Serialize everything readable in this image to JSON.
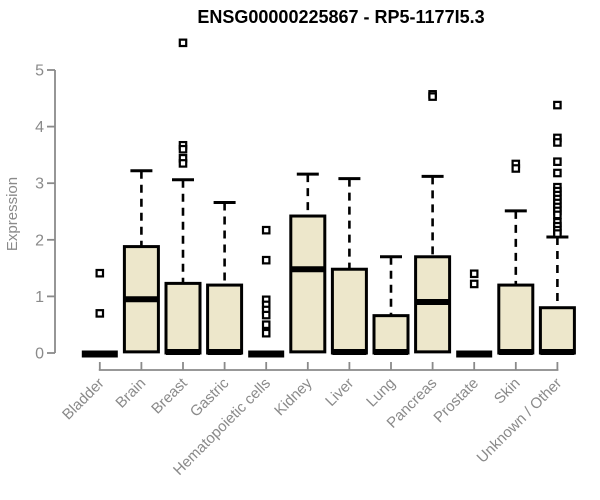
{
  "page": {
    "background": "#ffffff"
  },
  "chart_data": {
    "type": "boxplot",
    "title": "ENSG00000225867 - RP5-1177I5.3",
    "ylabel": "Expression",
    "xlabel": "",
    "ylim": [
      0,
      5
    ],
    "yticks": [
      0,
      1,
      2,
      3,
      4,
      5
    ],
    "grid": false,
    "legend": false,
    "box_fill": "#EDE7CB",
    "box_stroke": "#000000",
    "median_color": "#000000",
    "axis_color": "#8a8a8a",
    "title_color": "#000000",
    "categories": [
      "Bladder",
      "Brain",
      "Breast",
      "Gastric",
      "Hematopoietic cells",
      "Kidney",
      "Liver",
      "Lung",
      "Pancreas",
      "Prostate",
      "Skin",
      "Unknown / Other"
    ],
    "series": [
      {
        "name": "Bladder",
        "q1": 0,
        "median": 0.02,
        "q3": 0.02,
        "whisker_low": 0,
        "whisker_high": 0.02,
        "outliers": [
          1.41,
          0.7
        ]
      },
      {
        "name": "Brain",
        "q1": 0.02,
        "median": 0.95,
        "q3": 1.88,
        "whisker_low": 0,
        "whisker_high": 3.22,
        "outliers": []
      },
      {
        "name": "Breast",
        "q1": 0,
        "median": 0.03,
        "q3": 1.23,
        "whisker_low": 0,
        "whisker_high": 3.06,
        "outliers": [
          5.48,
          3.67,
          3.6,
          3.44,
          3.35
        ]
      },
      {
        "name": "Gastric",
        "q1": 0,
        "median": 0.03,
        "q3": 1.2,
        "whisker_low": 0,
        "whisker_high": 2.66,
        "outliers": []
      },
      {
        "name": "Hematopoietic cells",
        "q1": 0,
        "median": 0.02,
        "q3": 0.02,
        "whisker_low": 0,
        "whisker_high": 0.02,
        "outliers": [
          2.17,
          1.64,
          0.94,
          0.85,
          0.76,
          0.67,
          0.5,
          0.35
        ]
      },
      {
        "name": "Kidney",
        "q1": 0.02,
        "median": 1.48,
        "q3": 2.42,
        "whisker_low": 0,
        "whisker_high": 3.16,
        "outliers": []
      },
      {
        "name": "Liver",
        "q1": 0,
        "median": 0.03,
        "q3": 1.48,
        "whisker_low": 0,
        "whisker_high": 3.08,
        "outliers": []
      },
      {
        "name": "Lung",
        "q1": 0,
        "median": 0.03,
        "q3": 0.66,
        "whisker_low": 0,
        "whisker_high": 1.7,
        "outliers": []
      },
      {
        "name": "Pancreas",
        "q1": 0.02,
        "median": 0.9,
        "q3": 1.7,
        "whisker_low": 0,
        "whisker_high": 3.12,
        "outliers": [
          4.57,
          4.53
        ]
      },
      {
        "name": "Prostate",
        "q1": 0,
        "median": 0.02,
        "q3": 0.02,
        "whisker_low": 0,
        "whisker_high": 0.02,
        "outliers": [
          1.4,
          1.22
        ]
      },
      {
        "name": "Skin",
        "q1": 0,
        "median": 0.03,
        "q3": 1.2,
        "whisker_low": 0,
        "whisker_high": 2.51,
        "outliers": [
          3.34,
          3.26
        ]
      },
      {
        "name": "Unknown / Other",
        "q1": 0,
        "median": 0.03,
        "q3": 0.8,
        "whisker_low": 0,
        "whisker_high": 2.05,
        "outliers": [
          4.38,
          3.8,
          3.72,
          3.38,
          3.18,
          2.93,
          2.86,
          2.79,
          2.72,
          2.65,
          2.58,
          2.51,
          2.44,
          2.31,
          2.24,
          2.17,
          2.11
        ]
      }
    ]
  }
}
